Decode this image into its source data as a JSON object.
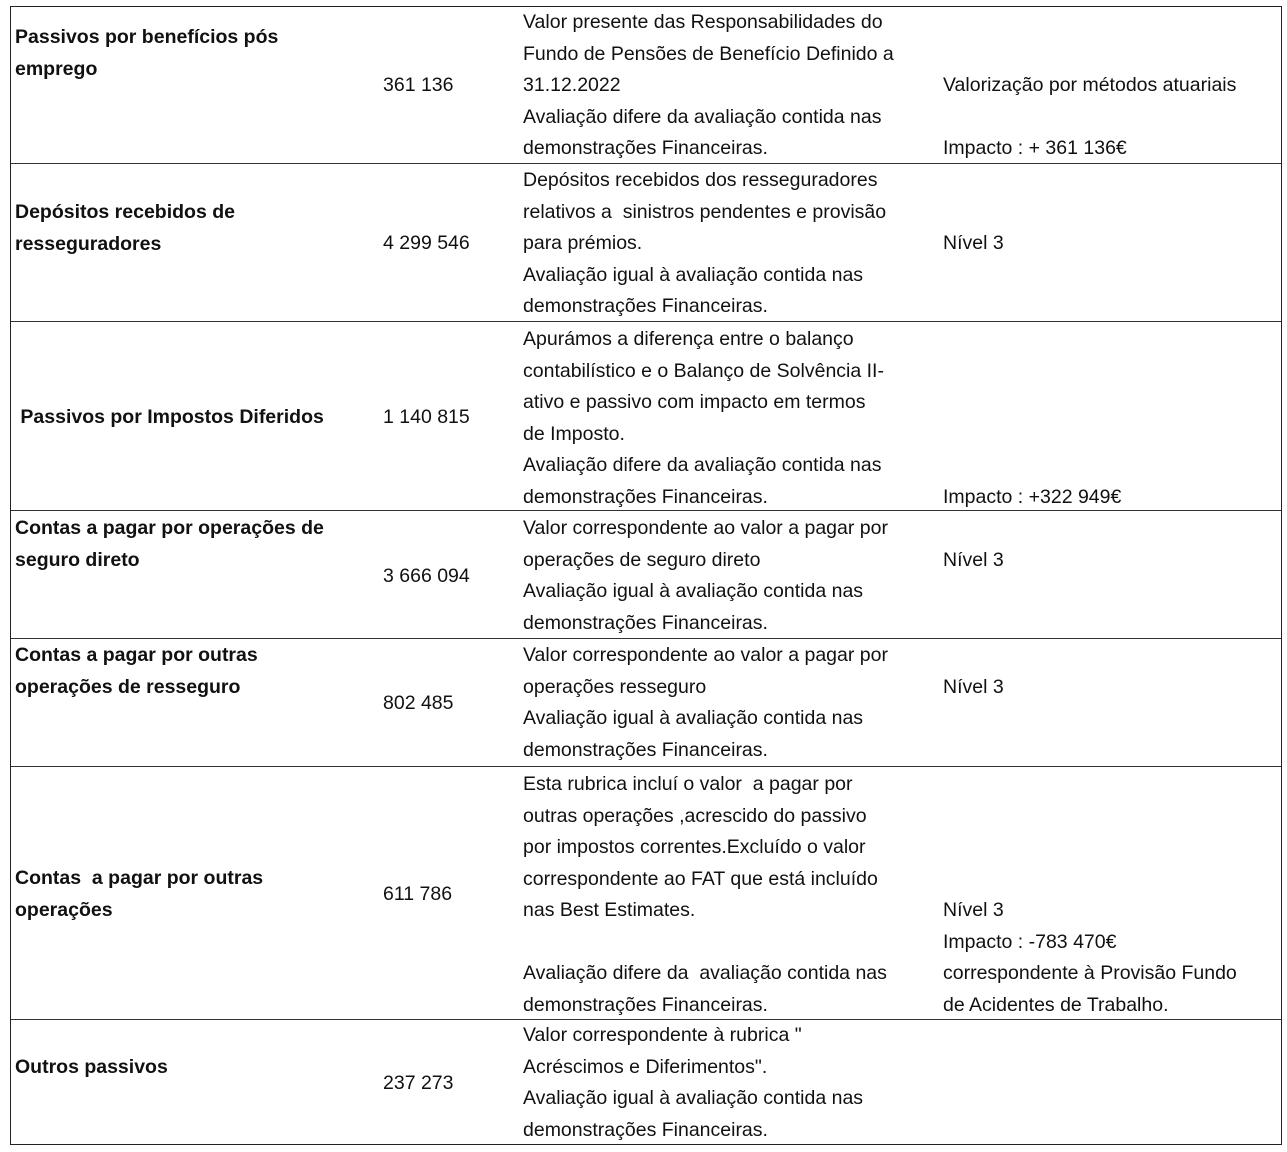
{
  "rows": [
    {
      "name": "Passivos por benefícios pós\nemprego",
      "amount": "361 136",
      "description": "Valor presente das Responsabilidades do\nFundo de Pensões de Benefício Definido a\n31.12.2022\nAvaliação difere da avaliação contida nas\ndemonstrações Financeiras.",
      "notes": "Valorização por métodos atuariais\n\nImpacto : + 361 136€"
    },
    {
      "name": "Depósitos recebidos de\nresseguradores",
      "amount": "4 299 546",
      "description": "Depósitos recebidos dos resseguradores\nrelativos a  sinistros pendentes e provisão\npara prémios.\nAvaliação igual à avaliação contida nas\ndemonstrações Financeiras.",
      "notes": "Nível 3"
    },
    {
      "name": " Passivos por Impostos Diferidos",
      "amount": "1 140 815",
      "description": "Apurámos a diferença entre o balanço\ncontabilístico e o Balanço de Solvência II-\nativo e passivo com impacto em termos\nde Imposto.\nAvaliação difere da avaliação contida nas\ndemonstrações Financeiras.",
      "notes": "Impacto : +322 949€"
    },
    {
      "name": "Contas a pagar por operações de\nseguro direto",
      "amount": "3 666 094",
      "description": "Valor correspondente ao valor a pagar por\noperações de seguro direto\nAvaliação igual à avaliação contida nas\ndemonstrações Financeiras.",
      "notes": "Nível 3"
    },
    {
      "name": "Contas a pagar por outras\noperações de resseguro",
      "amount": "802 485",
      "description": "Valor correspondente ao valor a pagar por\noperações resseguro\nAvaliação igual à avaliação contida nas\ndemonstrações Financeiras.",
      "notes": "Nível 3"
    },
    {
      "name": "Contas  a pagar por outras\noperações",
      "amount": "611 786",
      "description": "Esta rubrica incluí o valor  a pagar por\noutras operações ,acrescido do passivo\npor impostos correntes.Excluído o valor\ncorrespondente ao FAT que está incluído\nnas Best Estimates.\n\nAvaliação difere da  avaliação contida nas\ndemonstrações Financeiras.",
      "notes": "Nível 3\nImpacto : -783 470€\ncorrespondente à Provisão Fundo\nde Acidentes de Trabalho."
    },
    {
      "name": "Outros passivos",
      "amount": "237 273",
      "description": "Valor correspondente à rubrica \"\nAcréscimos e Diferimentos\".\nAvaliação igual à avaliação contida nas\ndemonstrações Financeiras.",
      "notes": ""
    }
  ]
}
